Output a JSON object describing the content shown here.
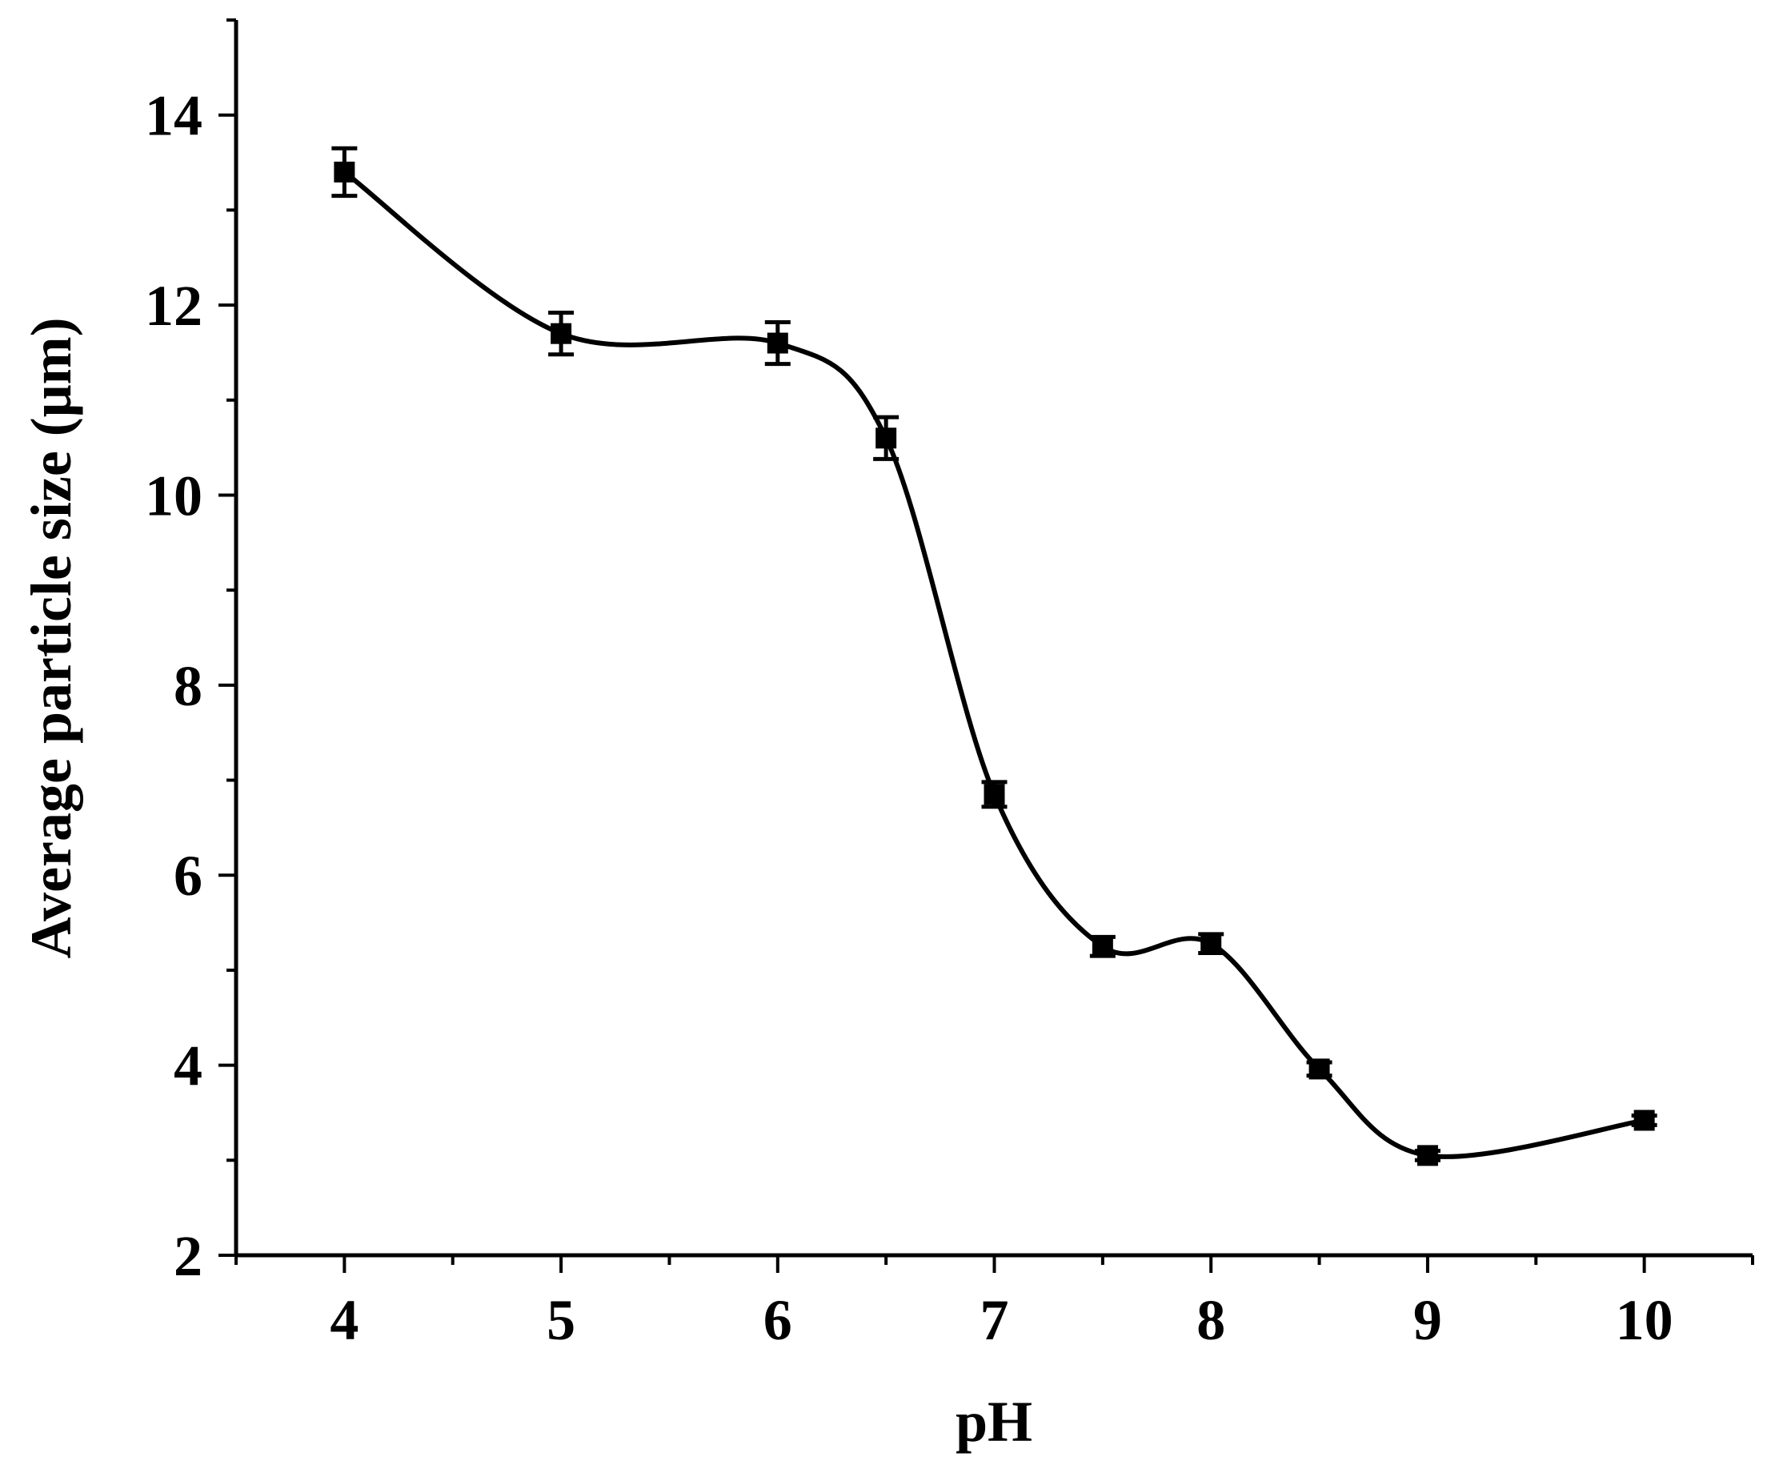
{
  "chart_data": {
    "type": "line",
    "title": "",
    "xlabel": "pH",
    "ylabel": "Average particle size (μm)",
    "xlim": [
      3.5,
      10.5
    ],
    "ylim": [
      2,
      15
    ],
    "x_ticks": [
      4,
      5,
      6,
      7,
      8,
      9,
      10
    ],
    "y_ticks": [
      2,
      4,
      6,
      8,
      10,
      12,
      14
    ],
    "grid": false,
    "legend": "none",
    "series": [
      {
        "color": "#000000",
        "marker": "square",
        "smooth": true,
        "x": [
          4,
          5,
          6,
          6.5,
          7,
          7.5,
          8,
          8.5,
          9,
          10
        ],
        "y": [
          13.4,
          11.7,
          11.6,
          10.6,
          6.85,
          5.25,
          5.28,
          3.96,
          3.05,
          3.42
        ],
        "error": [
          0.25,
          0.22,
          0.22,
          0.22,
          0.13,
          0.1,
          0.1,
          0.07,
          0.05,
          0.05
        ]
      }
    ]
  }
}
